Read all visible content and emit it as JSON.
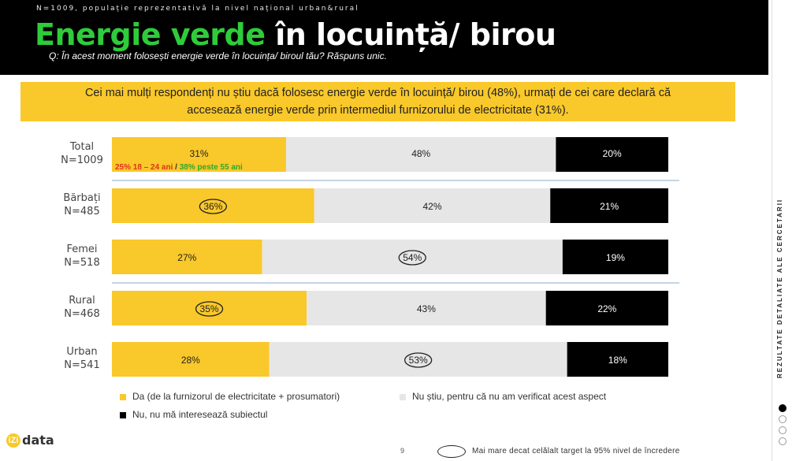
{
  "header": {
    "sample_note": "N=1009, populație reprezentativă la nivel național urban&rural",
    "title_green": "Energie verde",
    "title_white": " în locuință/ birou",
    "question": "Q: În acest moment folosești energie verde în locuința/ biroul tău? Răspuns unic."
  },
  "summary": {
    "line1": "Cei mai mulți respondenți nu știu dacă folosesc energie verde în locuință/ birou (48%), urmați de cei care declară că",
    "line2": "accesează energie verde prin intermediul furnizorului de electricitate (31%)."
  },
  "side_label": "REZULTATE DETALIATE ALE CERCETARII",
  "colors": {
    "yes": "#f9c82a",
    "unknown": "#e6e6e6",
    "no": "#000000",
    "ellipse": "#222222"
  },
  "chart_data": {
    "type": "bar",
    "orientation": "horizontal-stacked-100",
    "series": [
      {
        "name": "Da (de la furnizorul de electricitate + prosumatori)",
        "key": "yes"
      },
      {
        "name": "Nu știu, pentru că nu am verificat acest aspect",
        "key": "unknown"
      },
      {
        "name": "Nu, nu mă interesează subiectul",
        "key": "no"
      }
    ],
    "rows": [
      {
        "label": "Total",
        "n": "N=1009",
        "values": [
          31,
          48,
          20
        ],
        "labels": [
          "31%",
          "48%",
          "20%"
        ],
        "circled": []
      },
      {
        "label": "Bărbați",
        "n": "N=485",
        "values": [
          36,
          42,
          21
        ],
        "labels": [
          "36%",
          "42%",
          "21%"
        ],
        "circled": [
          0
        ]
      },
      {
        "label": "Femei",
        "n": "N=518",
        "values": [
          27,
          54,
          19
        ],
        "labels": [
          "27%",
          "54%",
          "19%"
        ],
        "circled": [
          1
        ]
      },
      {
        "label": "Rural",
        "n": "N=468",
        "values": [
          35,
          43,
          22
        ],
        "labels": [
          "35%",
          "43%",
          "22%"
        ],
        "circled": [
          0
        ]
      },
      {
        "label": "Urban",
        "n": "N=541",
        "values": [
          28,
          53,
          18
        ],
        "labels": [
          "28%",
          "53%",
          "18%"
        ],
        "circled": [
          1
        ]
      }
    ],
    "total_annotation": {
      "red": "25% 18 – 24 ani",
      "sep": " / ",
      "green": "38% peste 55 ani"
    },
    "dividers_after": [
      0,
      2
    ]
  },
  "footer": {
    "logo_mark": "iZi",
    "logo_text": "data",
    "page": "9",
    "note": "Mai mare decat celălalt target la 95% nivel de încredere"
  }
}
